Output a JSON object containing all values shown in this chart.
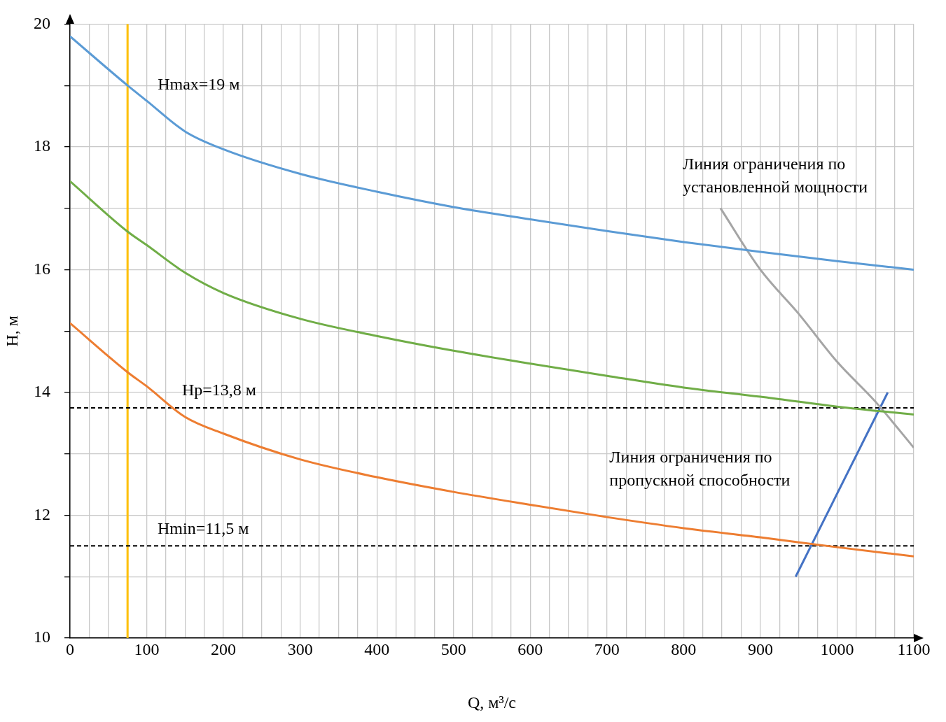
{
  "chart_data": {
    "type": "line",
    "xlabel": "Q, м³/с",
    "ylabel": "H, м",
    "x": [
      0,
      75,
      100,
      150,
      200,
      300,
      400,
      500,
      600,
      700,
      800,
      900,
      1000,
      1100
    ],
    "series": [
      {
        "color": "#5b9bd5",
        "values": [
          19.8,
          19.0,
          18.75,
          18.25,
          17.96,
          17.56,
          17.27,
          17.02,
          16.82,
          16.63,
          16.45,
          16.29,
          16.14,
          16.0
        ]
      },
      {
        "color": "#70ad47",
        "values": [
          17.44,
          16.62,
          16.4,
          15.95,
          15.62,
          15.2,
          14.92,
          14.68,
          14.47,
          14.27,
          14.08,
          13.93,
          13.77,
          13.64
        ]
      },
      {
        "color": "#ed7d31",
        "values": [
          15.13,
          14.33,
          14.1,
          13.6,
          13.33,
          12.91,
          12.62,
          12.38,
          12.17,
          11.97,
          11.79,
          11.64,
          11.48,
          11.33
        ]
      },
      {
        "name": "Линия ограничения по установленной мощности",
        "color": "#a5a5a5",
        "x": [
          848,
          900,
          950,
          1000,
          1050,
          1100
        ],
        "values": [
          17.0,
          16.0,
          15.28,
          14.5,
          13.85,
          13.1
        ]
      },
      {
        "name": "Линия ограничения по пропускной способности",
        "color": "#4472c4",
        "x": [
          946,
          1066
        ],
        "values": [
          11.0,
          14.0
        ]
      }
    ],
    "xlim": [
      0,
      1100
    ],
    "xticks": [
      0,
      {
        "value": 25,
        "label": null
      },
      {
        "value": 50,
        "label": null
      },
      {
        "value": 75,
        "label": null
      },
      100,
      {
        "value": 125,
        "label": null
      },
      {
        "value": 150,
        "label": null
      },
      {
        "value": 175,
        "label": null
      },
      200,
      {
        "value": 225,
        "label": null
      },
      {
        "value": 250,
        "label": null
      },
      {
        "value": 275,
        "label": null
      },
      300,
      {
        "value": 325,
        "label": null
      },
      {
        "value": 350,
        "label": null
      },
      {
        "value": 375,
        "label": null
      },
      400,
      {
        "value": 425,
        "label": null
      },
      {
        "value": 450,
        "label": null
      },
      {
        "value": 475,
        "label": null
      },
      500,
      {
        "value": 525,
        "label": null
      },
      {
        "value": 550,
        "label": null
      },
      {
        "value": 575,
        "label": null
      },
      600,
      {
        "value": 625,
        "label": null
      },
      {
        "value": 650,
        "label": null
      },
      {
        "value": 675,
        "label": null
      },
      700,
      {
        "value": 725,
        "label": null
      },
      {
        "value": 750,
        "label": null
      },
      {
        "value": 775,
        "label": null
      },
      800,
      {
        "value": 825,
        "label": null
      },
      {
        "value": 850,
        "label": null
      },
      {
        "value": 875,
        "label": null
      },
      900,
      {
        "value": 925,
        "label": null
      },
      {
        "value": 950,
        "label": null
      },
      {
        "value": 975,
        "label": null
      },
      1000,
      {
        "value": 1025,
        "label": null
      },
      {
        "value": 1050,
        "label": null
      },
      {
        "value": 1075,
        "label": null
      },
      1100
    ],
    "ylim": [
      10,
      20
    ],
    "yticks": [
      10,
      {
        "value": 11,
        "label": null
      },
      12,
      {
        "value": 13,
        "label": null
      },
      14,
      {
        "value": 15,
        "label": null
      },
      16,
      {
        "value": 17,
        "label": null
      },
      18,
      {
        "value": 19,
        "label": null
      },
      20
    ],
    "ref_lines": [
      {
        "axis": "x",
        "value": 75,
        "color": "#ffc000",
        "line_style": "solid"
      },
      {
        "axis": "y",
        "value": 13.75,
        "label": "Hp=13,8 м",
        "color": "#000000",
        "line_style": "dashed"
      },
      {
        "axis": "y",
        "value": 11.5,
        "label": "Hmin=11,5 м",
        "color": "#000000",
        "line_style": "dashed"
      }
    ],
    "annotations": [
      {
        "text": "Hmax=19 м",
        "x": 75,
        "y": 19
      }
    ],
    "grid": true,
    "legend": false,
    "marker": "none",
    "line_style": "solid"
  }
}
